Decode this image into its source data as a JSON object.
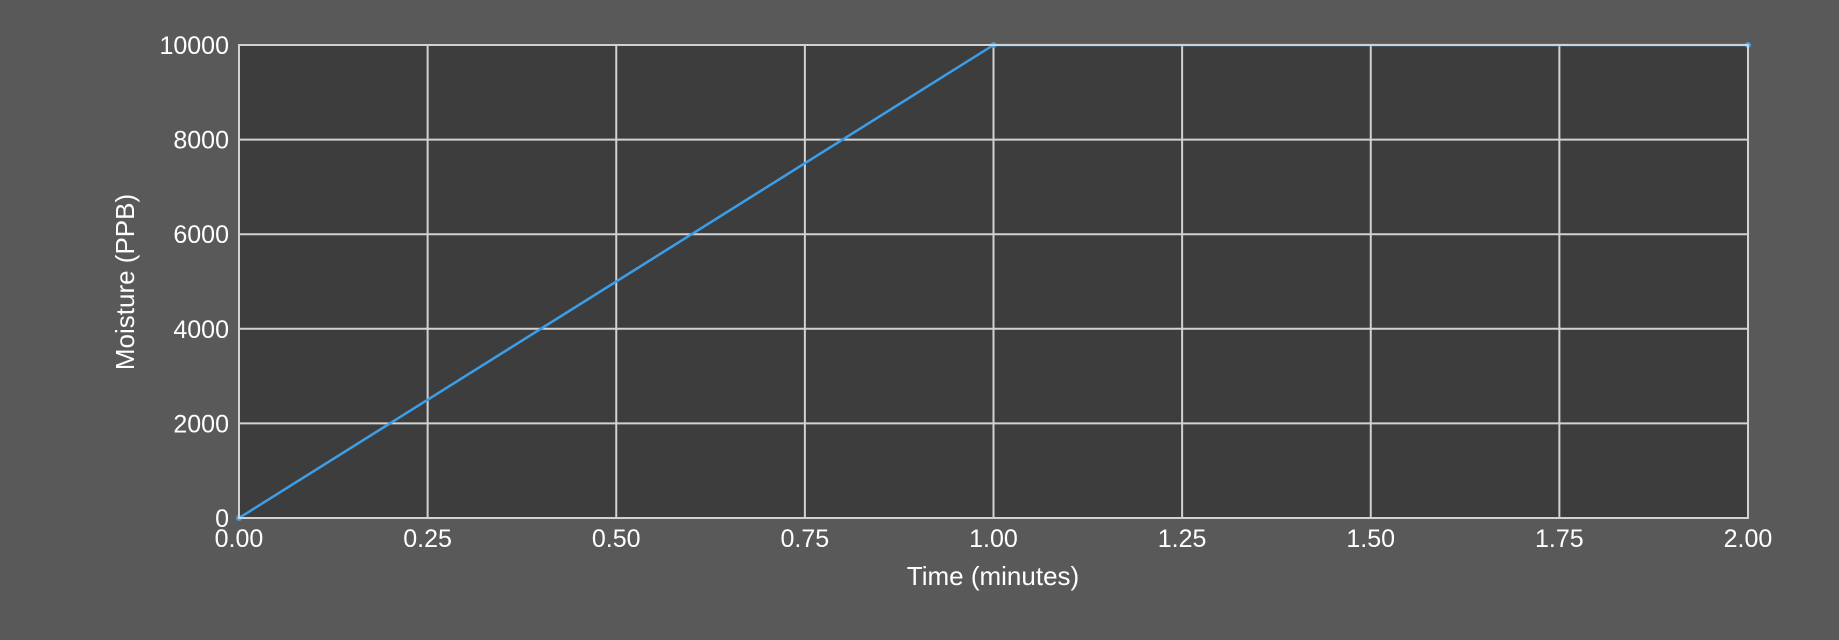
{
  "colors": {
    "page_background": "#595959",
    "plot_background": "#3d3d3d",
    "grid": "#d2d2d2",
    "text": "#ffffff",
    "series_line": "#3b9ee8"
  },
  "chart_data": {
    "type": "line",
    "title": "",
    "xlabel": "Time (minutes)",
    "ylabel": "Moisture (PPB)",
    "xlim": [
      0,
      2
    ],
    "ylim": [
      0,
      10000
    ],
    "x_ticks": [
      0,
      0.25,
      0.5,
      0.75,
      1.0,
      1.25,
      1.5,
      1.75,
      2.0
    ],
    "x_tick_labels": [
      "0.00",
      "0.25",
      "0.50",
      "0.75",
      "1.00",
      "1.25",
      "1.50",
      "1.75",
      "2.00"
    ],
    "y_ticks": [
      0,
      2000,
      4000,
      6000,
      8000,
      10000
    ],
    "y_tick_labels": [
      "0",
      "2000",
      "4000",
      "6000",
      "8000",
      "10000"
    ],
    "grid": true,
    "legend": "none",
    "series": [
      {
        "color": "#3b9ee8",
        "x": [
          0,
          1.0,
          2.0
        ],
        "y": [
          0,
          10000,
          10000
        ]
      }
    ]
  }
}
